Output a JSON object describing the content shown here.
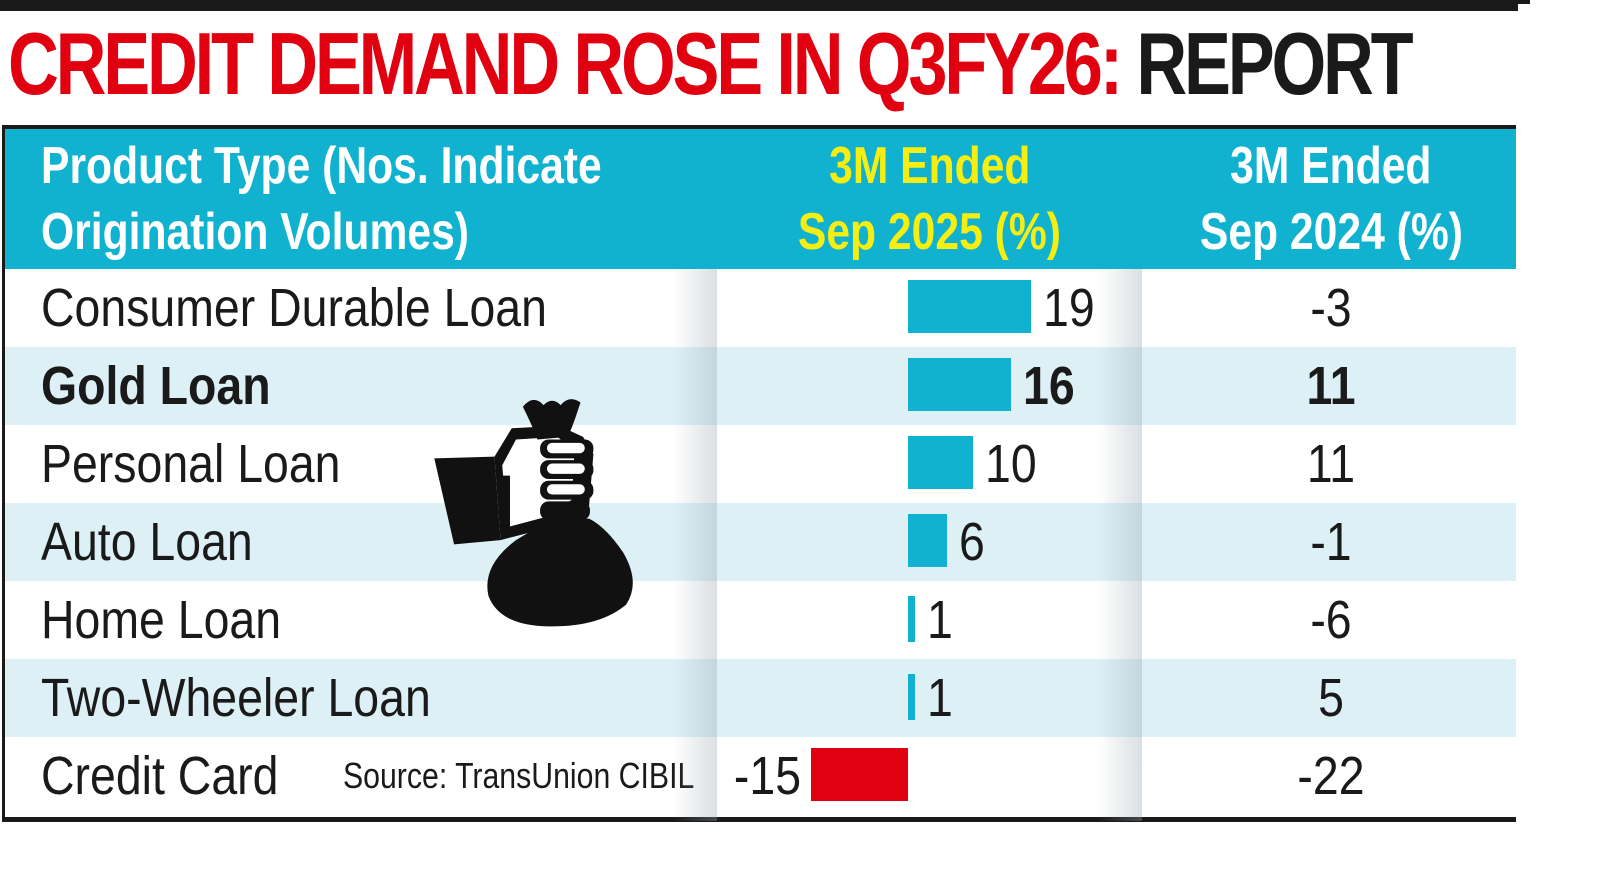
{
  "title": {
    "red_part": "CREDIT DEMAND ROSE IN Q3FY26:",
    "black_part": " REPORT"
  },
  "table": {
    "headers": {
      "product": [
        "Product Type (Nos. Indicate",
        "Origination Volumes)"
      ],
      "col_2025": [
        "3M Ended",
        "Sep 2025 (%)"
      ],
      "col_2024": [
        "3M Ended",
        "Sep 2024 (%)"
      ]
    },
    "rows": [
      {
        "product": "Consumer Durable Loan",
        "sep2025": "19",
        "sep2024": "-3"
      },
      {
        "product": "Gold Loan",
        "sep2025": "16",
        "sep2024": "11"
      },
      {
        "product": "Personal Loan",
        "sep2025": "10",
        "sep2024": "11"
      },
      {
        "product": "Auto Loan",
        "sep2025": "6",
        "sep2024": "-1"
      },
      {
        "product": "Home Loan",
        "sep2025": "1",
        "sep2024": "-6"
      },
      {
        "product": "Two-Wheeler Loan",
        "sep2025": "1",
        "sep2024": "5"
      },
      {
        "product": "Credit Card",
        "sep2025": "-15",
        "sep2024": "-22"
      }
    ],
    "source": "Source: TransUnion CIBIL"
  },
  "colors": {
    "header_bg": "#10b2cf",
    "header_highlight_text": "#f5ee12",
    "positive_bar": "#10b2cf",
    "negative_bar": "#e0000f",
    "title_red": "#e0000f",
    "row_alt_bg": "#dcf0f6"
  },
  "icon": "money-bag-in-hand-icon",
  "chart_data": {
    "type": "table",
    "title": "CREDIT DEMAND ROSE IN Q3FY26: REPORT",
    "subtitle": "Product Type (Nos. Indicate Origination Volumes)",
    "categories": [
      "Consumer Durable Loan",
      "Gold Loan",
      "Personal Loan",
      "Auto Loan",
      "Home Loan",
      "Two-Wheeler Loan",
      "Credit Card"
    ],
    "series": [
      {
        "name": "3M Ended Sep 2025 (%)",
        "values": [
          19,
          16,
          10,
          6,
          1,
          1,
          -15
        ],
        "display": "bar"
      },
      {
        "name": "3M Ended Sep 2024 (%)",
        "values": [
          -3,
          11,
          11,
          -1,
          -6,
          5,
          -22
        ],
        "display": "text"
      }
    ],
    "highlighted_row": "Gold Loan",
    "source": "Source: TransUnion CIBIL",
    "unit": "%"
  }
}
